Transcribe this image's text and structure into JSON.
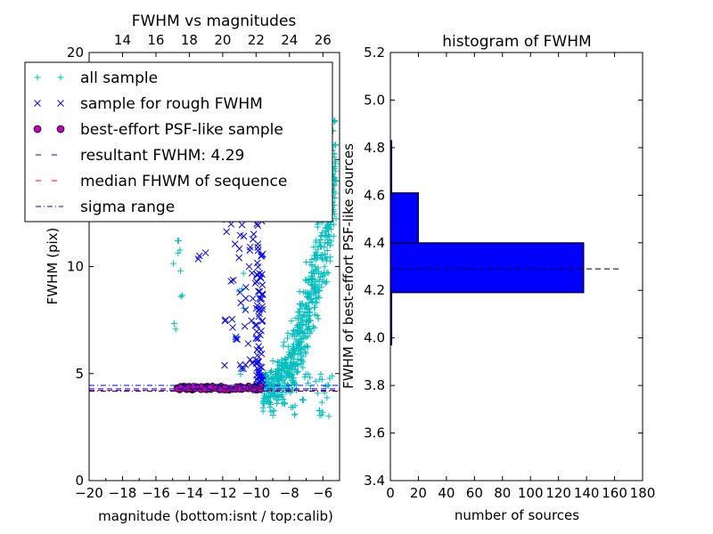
{
  "chart_data": [
    {
      "type": "scatter",
      "title": "FWHM vs magnitudes",
      "xlabel": "magnitude (bottom:isnt / top:calib)",
      "ylabel": "FWHM (pix)",
      "xlim": [
        -20,
        -5
      ],
      "ylim": [
        0,
        20
      ],
      "x_ticks": [
        "−20",
        "−18",
        "−16",
        "−14",
        "−12",
        "−10",
        "−8",
        "−6"
      ],
      "x_tick_values": [
        -20,
        -18,
        -16,
        -14,
        -12,
        -10,
        -8,
        -6
      ],
      "y_ticks": [
        "0",
        "5",
        "10",
        "15",
        "20"
      ],
      "y_tick_values": [
        0,
        5,
        10,
        15,
        20
      ],
      "top_axis": {
        "ticks": [
          "14",
          "16",
          "18",
          "20",
          "22",
          "24",
          "26"
        ],
        "offset": 32
      },
      "grid": false,
      "legend": {
        "placement": "upper-left",
        "entries": [
          {
            "label": "all sample",
            "marker": "+",
            "color": "#00bfbf"
          },
          {
            "label": "sample for rough FWHM",
            "marker": "x",
            "color": "#0000ff"
          },
          {
            "label": "best-effort PSF-like sample",
            "marker": "o",
            "color": "#bf00bf"
          },
          {
            "label": "resultant FWHM: 4.29",
            "marker": "dashed",
            "color": "#0000ff"
          },
          {
            "label": "median FHWM of sequence",
            "marker": "dashed",
            "color": "#ff0000"
          },
          {
            "label": "sigma range",
            "marker": "dashdot",
            "color": "#0000ff"
          }
        ]
      },
      "reference_lines": {
        "resultant_fwhm": 4.29,
        "median_fwhm": 4.22,
        "sigma_low": 4.18,
        "sigma_high": 4.45
      },
      "series": [
        {
          "name": "all sample",
          "marker": "+",
          "color": "#00bfbf",
          "clusters": [
            {
              "x_range": [
                -9.6,
                -5.2
              ],
              "y_range": [
                3.0,
                19.8
              ],
              "count": 650,
              "trend": "fwhm rises steeply toward brighter magnitudes"
            },
            {
              "x_range": [
                -15.0,
                -14.4
              ],
              "y_range": [
                6.5,
                13.5
              ],
              "count": 14
            },
            {
              "x_range": [
                -11.5,
                -10.5
              ],
              "y_range": [
                4.5,
                19.5
              ],
              "count": 10
            }
          ]
        },
        {
          "name": "sample for rough FWHM",
          "marker": "x",
          "color": "#0000ff",
          "clusters": [
            {
              "x_range": [
                -10.0,
                -9.6
              ],
              "y_range": [
                4.4,
                13.0
              ],
              "count": 90
            },
            {
              "x_range": [
                -12.0,
                -10.0
              ],
              "y_range": [
                5.0,
                13.0
              ],
              "count": 45
            },
            {
              "x_range": [
                -15.0,
                -12.8
              ],
              "y_range": [
                9.0,
                11.5
              ],
              "count": 3
            }
          ]
        },
        {
          "name": "best-effort PSF-like sample",
          "marker": "o",
          "color": "#bf00bf",
          "clusters": [
            {
              "x_range": [
                -14.8,
                -9.6
              ],
              "y_range": [
                4.22,
                4.42
              ],
              "count": 110
            }
          ]
        }
      ]
    },
    {
      "type": "bar",
      "orientation": "horizontal",
      "title": "histogram of FWHM",
      "xlabel": "number of sources",
      "ylabel": "FWHM of best-effort PSF-like sources",
      "xlim": [
        0,
        180
      ],
      "ylim": [
        3.4,
        5.2
      ],
      "x_ticks": [
        "0",
        "20",
        "40",
        "60",
        "80",
        "100",
        "120",
        "140",
        "160",
        "180"
      ],
      "x_tick_values": [
        0,
        20,
        40,
        60,
        80,
        100,
        120,
        140,
        160,
        180
      ],
      "y_ticks": [
        "3.4",
        "3.6",
        "3.8",
        "4.0",
        "4.2",
        "4.4",
        "4.6",
        "4.8",
        "5.0",
        "5.2"
      ],
      "y_tick_values": [
        3.4,
        3.6,
        3.8,
        4.0,
        4.2,
        4.4,
        4.6,
        4.8,
        5.0,
        5.2
      ],
      "bar_color": "#0000ff",
      "bins": [
        {
          "lo": 3.97,
          "hi": 4.19,
          "count": 1
        },
        {
          "lo": 4.19,
          "hi": 4.4,
          "count": 138
        },
        {
          "lo": 4.4,
          "hi": 4.61,
          "count": 20
        },
        {
          "lo": 4.61,
          "hi": 4.83,
          "count": 1
        }
      ],
      "reference_line": {
        "fwhm": 4.29,
        "style": "dashed",
        "color": "#000000"
      }
    }
  ]
}
